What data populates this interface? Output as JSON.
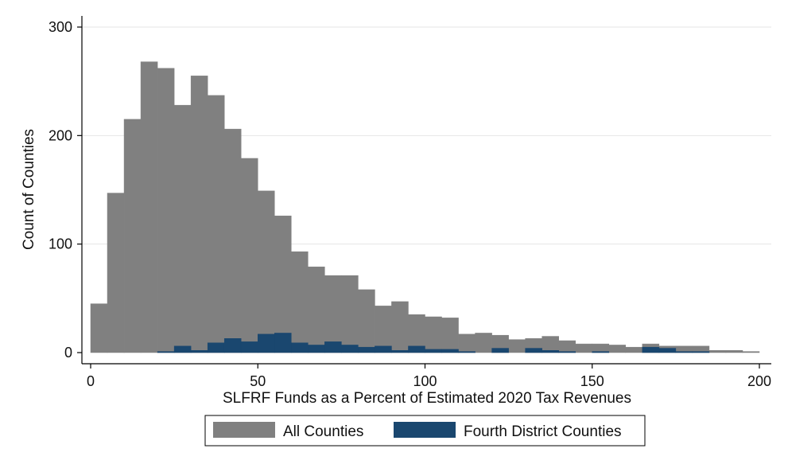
{
  "chart_data": {
    "type": "bar",
    "subtype": "overlaid-histogram",
    "xlabel": "SLFRF Funds as a Percent of Estimated 2020 Tax Revenues",
    "ylabel": "Count of Counties",
    "xlim": [
      0,
      200
    ],
    "ylim": [
      0,
      300
    ],
    "x_ticks": [
      0,
      50,
      100,
      150,
      200
    ],
    "y_ticks": [
      0,
      100,
      200,
      300
    ],
    "grid": "horizontal",
    "legend_position": "bottom",
    "bin_width": 5,
    "bin_starts": [
      0,
      5,
      10,
      15,
      20,
      25,
      30,
      35,
      40,
      45,
      50,
      55,
      60,
      65,
      70,
      75,
      80,
      85,
      90,
      95,
      100,
      105,
      110,
      115,
      120,
      125,
      130,
      135,
      140,
      145,
      150,
      155,
      160,
      165,
      170,
      175,
      180,
      185,
      190,
      195
    ],
    "series": [
      {
        "name": "All Counties",
        "color": "#808080",
        "values": [
          45,
          147,
          215,
          268,
          262,
          228,
          255,
          237,
          206,
          179,
          149,
          126,
          93,
          79,
          71,
          71,
          58,
          43,
          47,
          35,
          33,
          32,
          17,
          18,
          16,
          12,
          13,
          15,
          11,
          8,
          8,
          7,
          5,
          8,
          6,
          6,
          6,
          2,
          2,
          1
        ]
      },
      {
        "name": "Fourth District Counties",
        "color": "#1a476f",
        "values": [
          0,
          0,
          0,
          0,
          1,
          6,
          2,
          9,
          13,
          10,
          17,
          18,
          9,
          7,
          10,
          7,
          5,
          6,
          2,
          6,
          3,
          3,
          1,
          0,
          4,
          0,
          4,
          2,
          1,
          0,
          1,
          0,
          0,
          5,
          4,
          1,
          1,
          0,
          0,
          0
        ]
      }
    ]
  }
}
